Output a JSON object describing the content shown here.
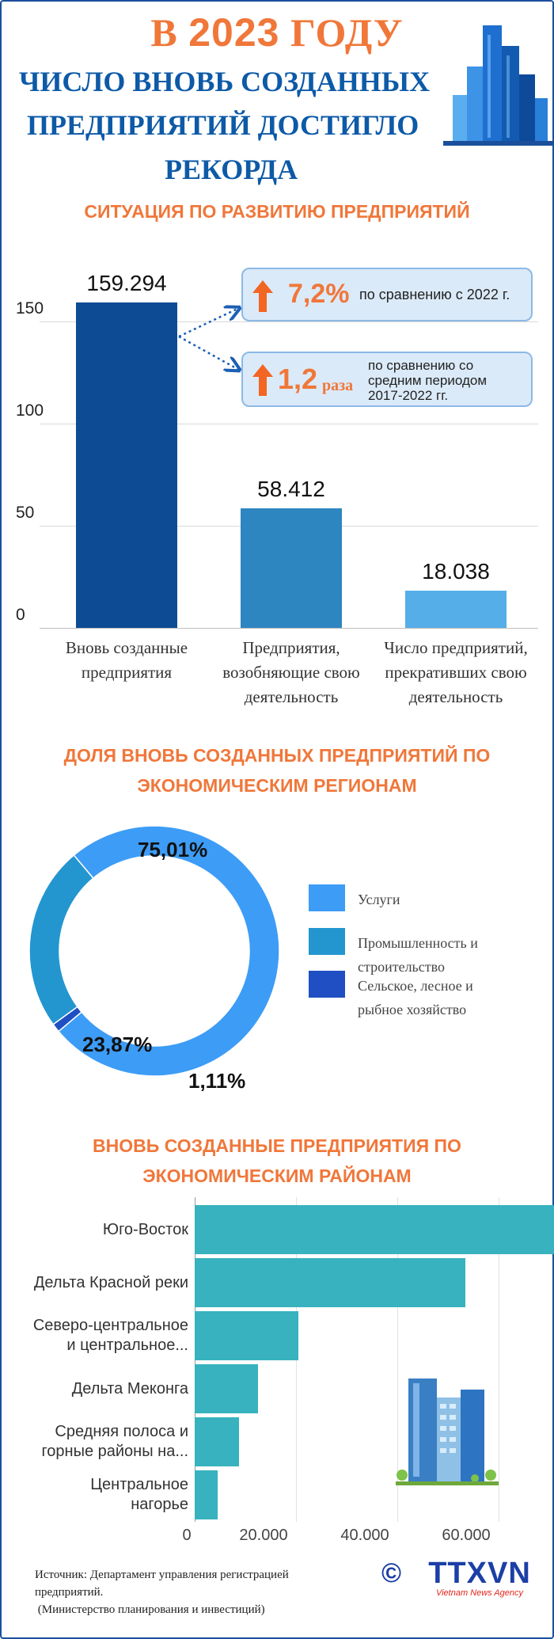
{
  "header": {
    "line1_pre": "В ",
    "line1_year": "2023",
    "line1_post": " ГОДУ",
    "line2": "ЧИСЛО ВНОВЬ СОЗДАННЫХ",
    "line3": "ПРЕДПРИЯТИЙ ДОСТИГЛО",
    "line4": "РЕКОРДА"
  },
  "section1": {
    "title": "СИТУАЦИЯ ПО РАЗВИТИЮ ПРЕДПРИЯТИЙ"
  },
  "section2": {
    "title_l1": "ДОЛЯ ВНОВЬ СОЗДАННЫХ ПРЕДПРИЯТИЙ ПО",
    "title_l2": "ЭКОНОМИЧЕСКИМ РЕГИОНАМ"
  },
  "section3": {
    "title_l1": "ВНОВЬ СОЗДАННЫЕ ПРЕДПРИЯТИЯ ПО",
    "title_l2": "ЭКОНОМИЧЕСКИМ РАЙОНАМ"
  },
  "callouts": [
    {
      "value": "7,2%",
      "unit": "",
      "text1": "по сравнению с 2022 г.",
      "text2": "",
      "text3": ""
    },
    {
      "value": "1,2",
      "unit": "раза",
      "text1": "по сравнению со",
      "text2": "средним периодом",
      "text3": "2017-2022 гг."
    }
  ],
  "source": {
    "line1": "Источник: Департамент управления регистрацией",
    "line2": "предприятий.",
    "line3": " (Министерство планирования и инвестиций)"
  },
  "logo": {
    "copyright": "©",
    "brand": "TTXVN",
    "sub": "Vietnam News Agency"
  },
  "colors": {
    "orange": "#f0773a",
    "navy": "#0d5aa7",
    "bar1": "#0d4c94",
    "bar2": "#2e86c1",
    "bar3": "#55aee8",
    "teal": "#37b2be"
  },
  "chart_data": [
    {
      "type": "bar",
      "categories": [
        [
          "Вновь созданные",
          "предприятия"
        ],
        [
          "Предприятия,",
          "возобняющие свою",
          "деятельность"
        ],
        [
          "Число предприятий,",
          "прекративших свою",
          "деятельность"
        ]
      ],
      "values": [
        159.294,
        58.412,
        18.038
      ],
      "value_labels": [
        "159.294",
        "58.412",
        "18.038"
      ],
      "ylim": [
        0,
        160
      ],
      "yticks": [
        0,
        50,
        100,
        150
      ],
      "grid": true
    },
    {
      "type": "pie",
      "donut": true,
      "slices": [
        {
          "name": "Услуги",
          "value": 75.01,
          "label": "75,01%",
          "color": "#3d9cf6"
        },
        {
          "name": "Промышленность и строительство",
          "value": 23.87,
          "label": "23,87%",
          "color": "#2396d0"
        },
        {
          "name": "Сельское, лесное и рыбное хозяйство",
          "value": 1.11,
          "label": "1,11%",
          "color": "#1f4fc2"
        }
      ],
      "legend": [
        {
          "lines": [
            "Услуги"
          ]
        },
        {
          "lines": [
            "Промышленность и",
            " строительство"
          ]
        },
        {
          "lines": [
            "Сельское, лесное и",
            "рыбное хозяйство"
          ]
        }
      ],
      "legend_position": "right"
    },
    {
      "type": "bar",
      "orientation": "horizontal",
      "categories": [
        [
          "Юго-Восток"
        ],
        [
          "Дельта Красной реки"
        ],
        [
          "Северо-центральное",
          "и центральное..."
        ],
        [
          "Дельта Меконга"
        ],
        [
          "Средняя полоса и",
          "горные районы на..."
        ],
        [
          "Центральное",
          "нагорье"
        ]
      ],
      "values": [
        73500,
        53500,
        20500,
        12500,
        8700,
        4600
      ],
      "xlim": [
        0,
        74000
      ],
      "xticks": [
        0,
        20000,
        40000,
        60000
      ],
      "xtick_labels": [
        "0",
        "20.000",
        "40.000",
        "60.000"
      ],
      "grid": true
    }
  ]
}
